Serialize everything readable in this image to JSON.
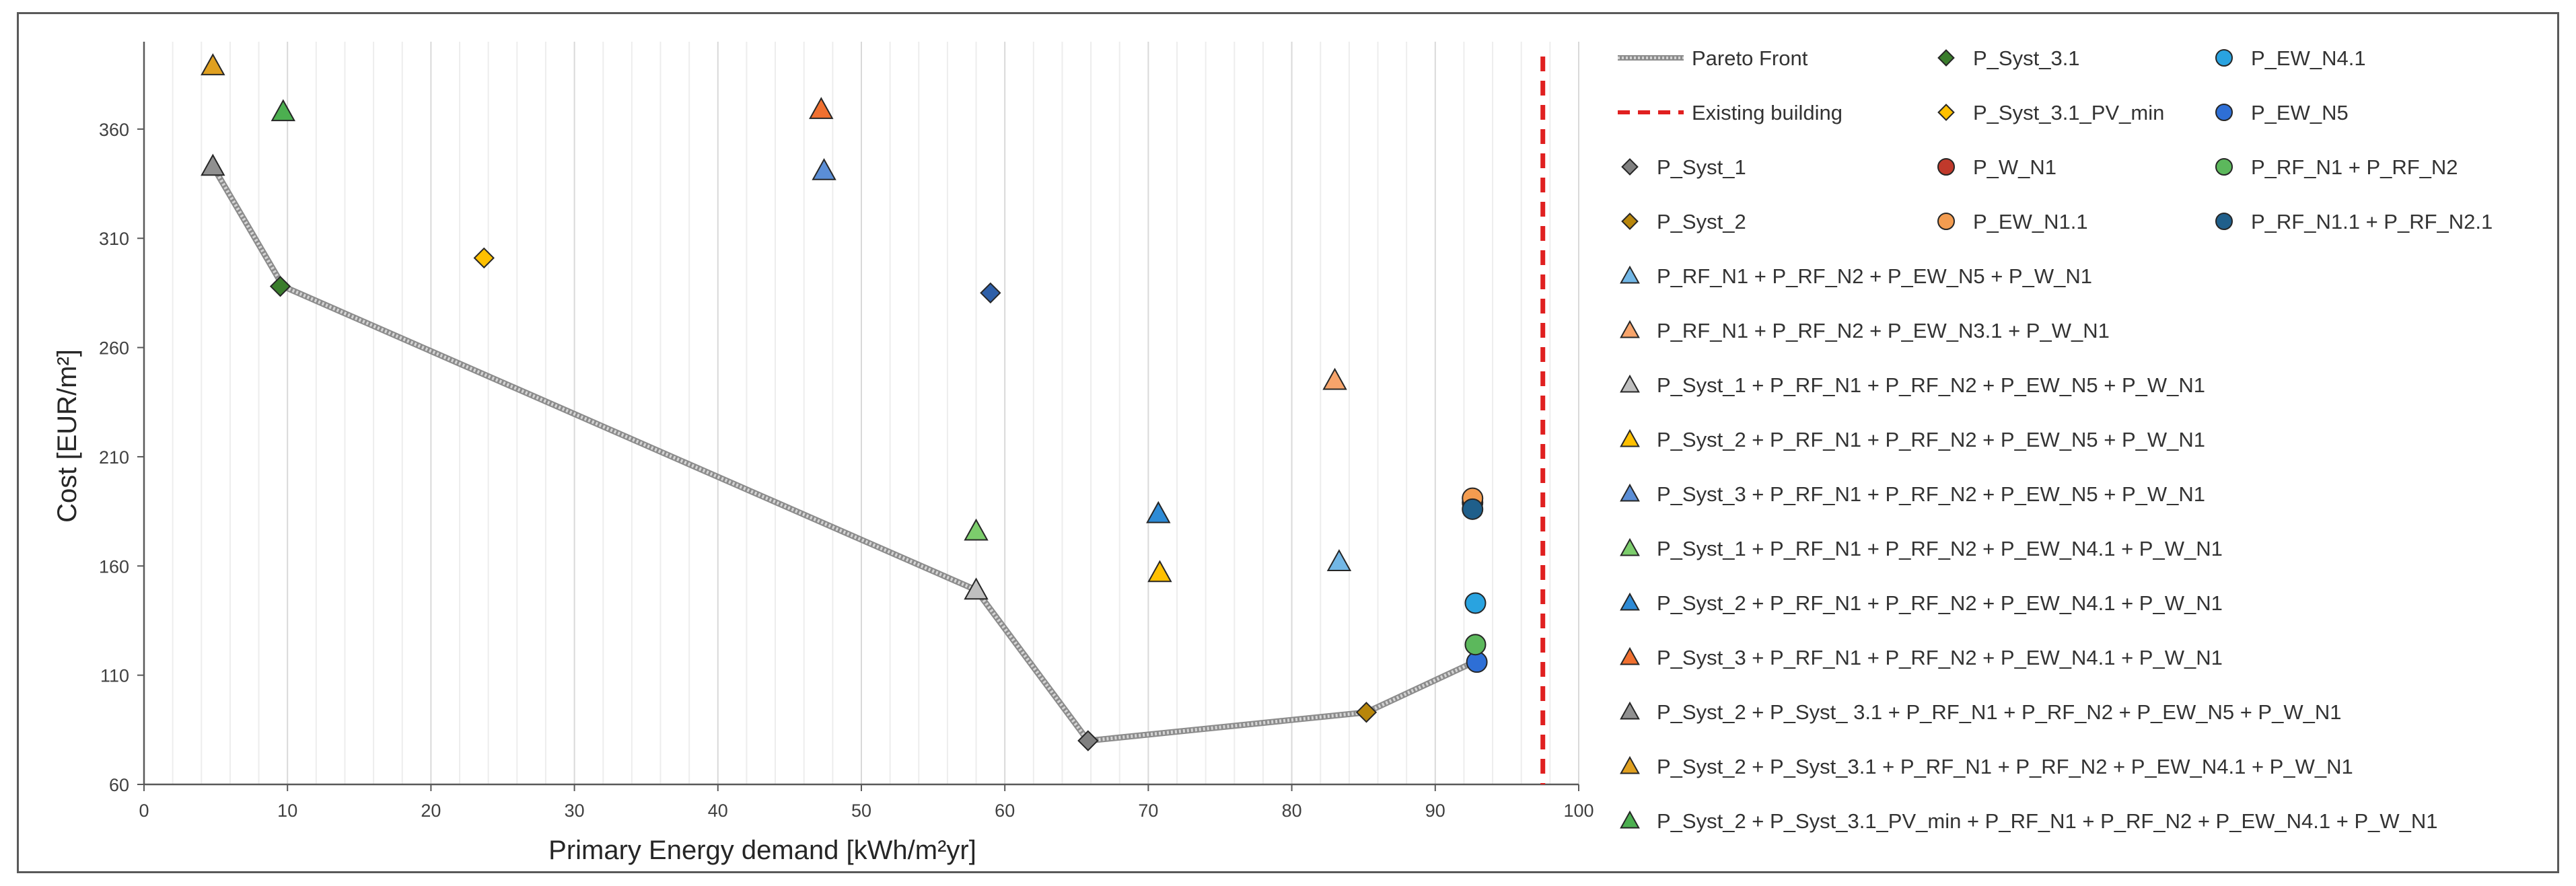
{
  "chart_data": {
    "type": "scatter",
    "title": "",
    "xlabel": "Primary Energy demand [kWh/m²yr]",
    "ylabel": "Cost [EUR/m²]",
    "xlim": [
      0,
      100
    ],
    "ylim": [
      60,
      400
    ],
    "xticks": [
      0,
      10,
      20,
      30,
      40,
      50,
      60,
      70,
      80,
      90,
      100
    ],
    "yticks": [
      60,
      110,
      160,
      210,
      260,
      310,
      360
    ],
    "grid": "vertical",
    "legend_position": "right",
    "pareto_front": {
      "name": "Pareto Front",
      "color": "#a6a6a6",
      "points": [
        [
          4.8,
          343
        ],
        [
          9.7,
          288
        ],
        [
          58,
          149
        ],
        [
          65.8,
          80
        ],
        [
          85.2,
          93
        ],
        [
          92.7,
          116
        ]
      ]
    },
    "existing_building": {
      "name": "Existing building",
      "x": 97.5,
      "color": "#e02020"
    },
    "series": [
      {
        "name": "P_Syst_3.1",
        "marker": "diamond",
        "color": "#3a7d2c",
        "points": [
          [
            9.5,
            288
          ]
        ]
      },
      {
        "name": "P_Syst_3.1_PV_min",
        "marker": "diamond",
        "color": "#ffc000",
        "points": [
          [
            23.7,
            301
          ]
        ]
      },
      {
        "name": "P_Syst_1",
        "marker": "diamond",
        "color": "#808080",
        "points": [
          [
            65.8,
            80
          ]
        ]
      },
      {
        "name": "P_Syst_2",
        "marker": "diamond",
        "color": "#b8860b",
        "points": [
          [
            85.2,
            93
          ]
        ]
      },
      {
        "name": "P_EW_N4.1",
        "marker": "circle",
        "color": "#29a3e0",
        "points": [
          [
            92.8,
            143
          ]
        ]
      },
      {
        "name": "P_EW_N5",
        "marker": "circle",
        "color": "#2e6fd6",
        "points": [
          [
            92.9,
            116
          ]
        ]
      },
      {
        "name": "P_W_N1",
        "marker": "circle",
        "color": "#c0392b",
        "points": [
          [
            92.6,
            189
          ]
        ]
      },
      {
        "name": "P_EW_N1.1",
        "marker": "circle",
        "color": "#f39c50",
        "points": [
          [
            92.6,
            191
          ]
        ]
      },
      {
        "name": "P_RF_N1 + P_RF_N2",
        "marker": "circle",
        "color": "#5cb85c",
        "points": [
          [
            92.8,
            124
          ]
        ]
      },
      {
        "name": "P_RF_N1.1 + P_RF_N2.1",
        "marker": "circle",
        "color": "#1f5f8b",
        "points": [
          [
            92.6,
            186
          ]
        ]
      },
      {
        "name": "P_RF_N1 + P_RF_N2 + P_EW_N5 + P_W_N1",
        "marker": "triangle",
        "color": "#72b7e6",
        "points": [
          [
            83.3,
            162
          ]
        ]
      },
      {
        "name": "P_RF_N1 + P_RF_N2 + P_EW_N3.1 + P_W_N1",
        "marker": "triangle",
        "color": "#f7a46b",
        "points": [
          [
            83,
            245
          ]
        ]
      },
      {
        "name": "P_Syst_1 + P_RF_N1 + P_RF_N2 + P_EW_N5 + P_W_N1",
        "marker": "triangle",
        "color": "#bfbfbf",
        "points": [
          [
            58,
            149
          ]
        ]
      },
      {
        "name": "P_Syst_2 + P_RF_N1 + P_RF_N2 + P_EW_N5 + P_W_N1",
        "marker": "triangle",
        "color": "#ffc000",
        "points": [
          [
            70.8,
            157
          ]
        ]
      },
      {
        "name": "P_Syst_3 + P_RF_N1 + P_RF_N2 + P_EW_N5 + P_W_N1",
        "marker": "triangle",
        "color": "#5b8ed6",
        "points": [
          [
            47.4,
            341
          ]
        ]
      },
      {
        "name": "P_Syst_1 + P_RF_N1 + P_RF_N2 + P_EW_N4.1 + P_W_N1",
        "marker": "triangle",
        "color": "#7ccd6c",
        "points": [
          [
            58,
            176
          ]
        ]
      },
      {
        "name": "P_Syst_2 + P_RF_N1 + P_RF_N2 + P_EW_N4.1 + P_W_N1",
        "marker": "triangle",
        "color": "#2e8bd6",
        "points": [
          [
            70.7,
            184
          ]
        ]
      },
      {
        "name": "P_Syst_3 + P_RF_N1 + P_RF_N2 + P_EW_N4.1 + P_W_N1",
        "marker": "triangle",
        "color": "#f07030",
        "points": [
          [
            47.2,
            369
          ]
        ]
      },
      {
        "name": "P_Syst_2 + P_Syst_ 3.1 + P_RF_N1 + P_RF_N2 + P_EW_N5 + P_W_N1",
        "marker": "triangle",
        "color": "#909090",
        "points": [
          [
            4.8,
            343
          ]
        ]
      },
      {
        "name": "P_Syst_2 + P_Syst_3.1 + P_RF_N1 + P_RF_N2 + P_EW_N4.1 + P_W_N1",
        "marker": "triangle",
        "color": "#e0a020",
        "points": [
          [
            4.8,
            389
          ]
        ]
      },
      {
        "name": "P_Syst_2 + P_Syst_3.1_PV_min + P_RF_N1 + P_RF_N2 + P_EW_N4.1 + P_W_N1",
        "marker": "triangle",
        "color": "#4caf50",
        "points": [
          [
            9.7,
            368
          ]
        ]
      }
    ],
    "blue_diamond": {
      "name": "",
      "marker": "diamond",
      "color": "#2e5fa8",
      "points": [
        [
          59,
          285
        ]
      ]
    }
  },
  "legend": {
    "columns": [
      [
        "Pareto Front",
        "Existing building",
        "P_Syst_1",
        "P_Syst_2"
      ],
      [
        "P_Syst_3.1",
        "P_Syst_3.1_PV_min",
        "P_W_N1",
        "P_EW_N1.1"
      ],
      [
        "P_EW_N4.1",
        "P_EW_N5",
        "P_RF_N1 + P_RF_N2",
        "P_RF_N1.1 + P_RF_N2.1"
      ]
    ],
    "rows": [
      "P_RF_N1 + P_RF_N2 + P_EW_N5 + P_W_N1",
      "P_RF_N1 + P_RF_N2 + P_EW_N3.1 + P_W_N1",
      "P_Syst_1 + P_RF_N1 + P_RF_N2 + P_EW_N5 + P_W_N1",
      "P_Syst_2 + P_RF_N1 + P_RF_N2 + P_EW_N5 + P_W_N1",
      "P_Syst_3 + P_RF_N1 + P_RF_N2 + P_EW_N5 + P_W_N1",
      "P_Syst_1 + P_RF_N1 + P_RF_N2 + P_EW_N4.1 + P_W_N1",
      "P_Syst_2 + P_RF_N1 + P_RF_N2 + P_EW_N4.1 + P_W_N1",
      "P_Syst_3 + P_RF_N1 + P_RF_N2 + P_EW_N4.1 + P_W_N1",
      "P_Syst_2 + P_Syst_ 3.1 + P_RF_N1 + P_RF_N2 + P_EW_N5 + P_W_N1",
      "P_Syst_2 + P_Syst_3.1 + P_RF_N1 + P_RF_N2 + P_EW_N4.1 + P_W_N1",
      "P_Syst_2 + P_Syst_3.1_PV_min + P_RF_N1 + P_RF_N2 + P_EW_N4.1 + P_W_N1"
    ]
  }
}
